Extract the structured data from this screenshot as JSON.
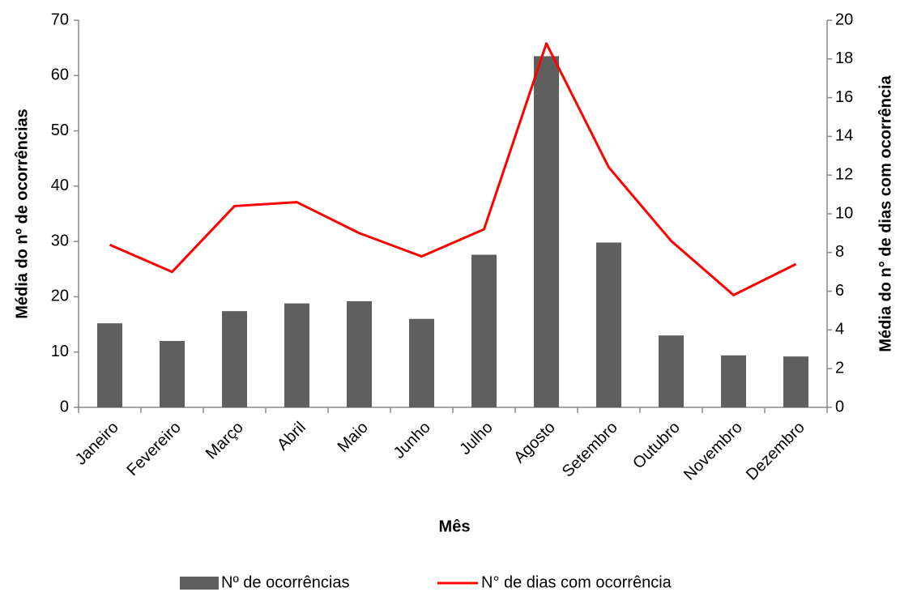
{
  "chart_data": {
    "type": "bar_line",
    "x_label": "Mês",
    "y_label": "Média do nº de ocorrências",
    "y2_label": "Média do n° de dias com ocorrência",
    "categories": [
      "Janeiro",
      "Fevereiro",
      "Março",
      "Abril",
      "Maio",
      "Junho",
      "Julho",
      "Agosto",
      "Setembro",
      "Outubro",
      "Novembro",
      "Dezembro"
    ],
    "series": [
      {
        "name": "Nº de ocorrências",
        "type": "bar",
        "color": "#5f5f5f",
        "values": [
          15.2,
          12,
          17.4,
          18.8,
          19.2,
          16,
          27.6,
          63.5,
          29.8,
          13,
          9.4,
          9.2
        ]
      },
      {
        "name": "N° de dias com ocorrência",
        "type": "line",
        "axis": "y2",
        "color": "#ff0000",
        "values": [
          8.4,
          7.0,
          10.4,
          10.6,
          9.0,
          7.8,
          9.2,
          18.8,
          12.4,
          8.6,
          5.8,
          7.4
        ]
      }
    ],
    "ylim": [
      0,
      70
    ],
    "yticks": [
      0,
      10,
      20,
      30,
      40,
      50,
      60,
      70
    ],
    "y2lim": [
      0,
      20
    ],
    "y2ticks": [
      0,
      2,
      4,
      6,
      8,
      10,
      12,
      14,
      16,
      18,
      20
    ],
    "grid": false,
    "legend": "bottom"
  }
}
